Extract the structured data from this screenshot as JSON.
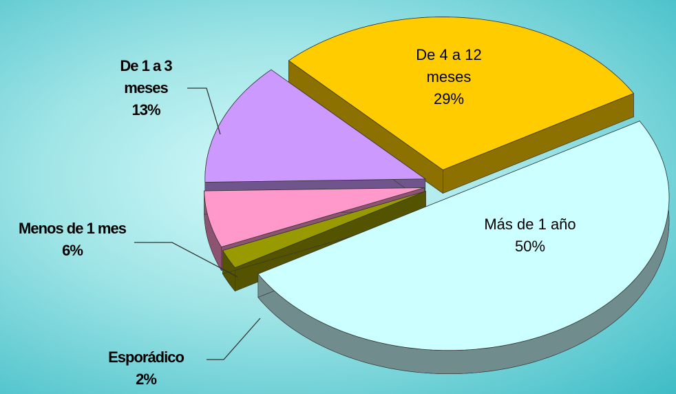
{
  "chart_data": {
    "type": "pie",
    "categories": [
      "Más de 1 año",
      "Esporádico",
      "Menos de 1 mes",
      "De 1 a 3 meses",
      "De 4 a 12 meses"
    ],
    "values": [
      50,
      2,
      6,
      13,
      29
    ],
    "value_labels": [
      "50%",
      "2%",
      "6%",
      "13%",
      "29%"
    ],
    "colors": [
      "#ccffff",
      "#999900",
      "#ff99cc",
      "#cc99ff",
      "#ffcc00"
    ]
  }
}
